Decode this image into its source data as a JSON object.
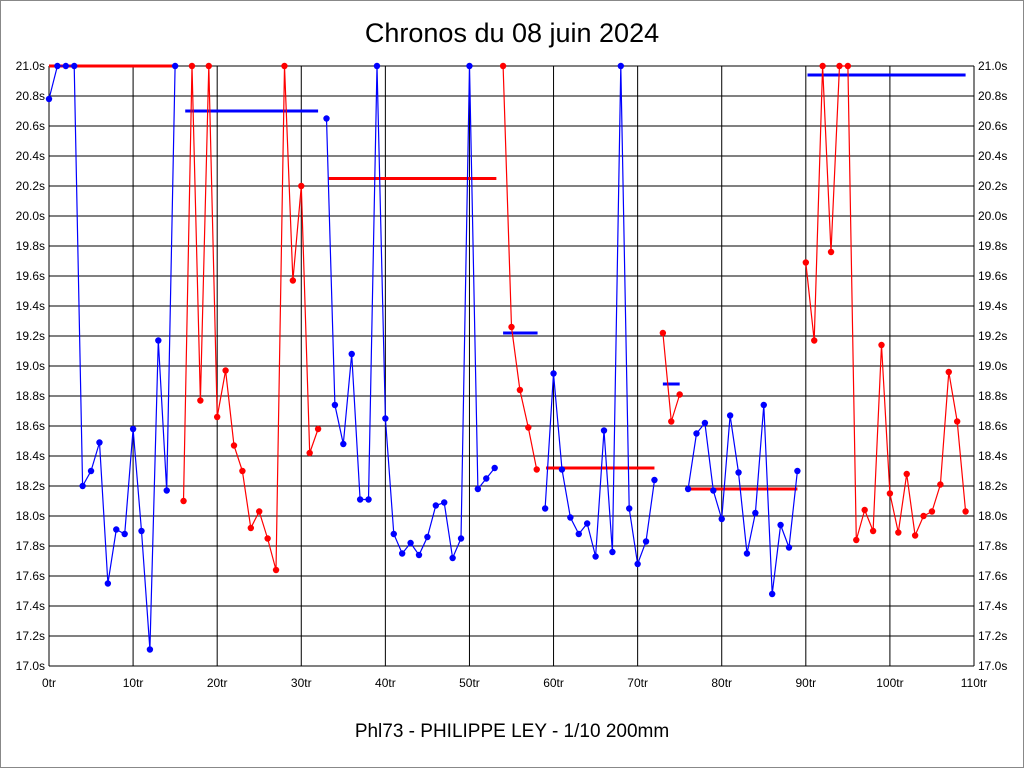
{
  "chart_data": {
    "type": "line",
    "title": "Chronos du 08 juin 2024",
    "subtitle": "Phl73 - PHILIPPE LEY - 1/10 200mm",
    "xlabel": "",
    "ylabel": "",
    "xlim": [
      0,
      110
    ],
    "ylim": [
      17.0,
      21.0
    ],
    "grid": true,
    "x_ticks": [
      "0tr",
      "10tr",
      "20tr",
      "30tr",
      "40tr",
      "50tr",
      "60tr",
      "70tr",
      "80tr",
      "90tr",
      "100tr",
      "110tr"
    ],
    "y_ticks": [
      "21.0s",
      "20.8s",
      "20.6s",
      "20.4s",
      "20.2s",
      "20.0s",
      "19.8s",
      "19.6s",
      "19.4s",
      "19.2s",
      "19.0s",
      "18.8s",
      "18.6s",
      "18.4s",
      "18.2s",
      "18.0s",
      "17.8s",
      "17.6s",
      "17.4s",
      "17.2s",
      "17.0s"
    ],
    "colors": {
      "blue": "#0000ff",
      "red": "#ff0000"
    },
    "series": [
      {
        "name": "session-1",
        "color": "#0000ff",
        "start_lap": 0,
        "values": [
          20.78,
          21.0,
          21.0,
          21.0,
          18.2,
          18.3,
          18.49,
          17.55,
          17.91,
          17.88,
          18.58,
          17.9,
          17.11,
          19.17,
          18.17,
          21.0
        ]
      },
      {
        "name": "session-2",
        "color": "#ff0000",
        "start_lap": 16,
        "values": [
          18.1,
          21.0,
          18.77,
          21.0,
          18.66,
          18.97,
          18.47,
          18.3,
          17.92,
          18.03,
          17.85,
          17.64,
          21.0,
          19.57,
          20.2,
          18.42,
          18.58
        ]
      },
      {
        "name": "session-3",
        "color": "#0000ff",
        "start_lap": 33,
        "values": [
          20.65,
          18.74,
          18.48,
          19.08,
          18.11,
          18.11,
          21.0,
          18.65,
          17.88,
          17.75,
          17.82,
          17.74,
          17.86,
          18.07,
          18.09,
          17.72,
          17.85,
          21.0,
          18.18,
          18.25,
          18.32
        ]
      },
      {
        "name": "session-4",
        "color": "#ff0000",
        "start_lap": 54,
        "values": [
          21.0,
          19.26,
          18.84,
          18.59,
          18.31
        ]
      },
      {
        "name": "session-5",
        "color": "#0000ff",
        "start_lap": 59,
        "values": [
          18.05,
          18.95,
          18.31,
          17.99,
          17.88,
          17.95,
          17.73,
          18.57,
          17.76,
          21.0,
          18.05,
          17.68,
          17.83,
          18.24
        ]
      },
      {
        "name": "session-6",
        "color": "#ff0000",
        "start_lap": 73,
        "values": [
          19.22,
          18.63,
          18.81
        ]
      },
      {
        "name": "session-7",
        "color": "#0000ff",
        "start_lap": 76,
        "values": [
          18.18,
          18.55,
          18.62,
          18.17,
          17.98,
          18.67,
          18.29,
          17.75,
          18.02,
          18.74,
          17.48,
          17.94,
          17.79,
          18.3
        ]
      },
      {
        "name": "session-8",
        "color": "#ff0000",
        "start_lap": 90,
        "values": [
          19.69,
          19.17,
          21.0,
          19.76,
          21.0,
          21.0,
          17.84,
          18.04,
          17.9,
          19.14,
          18.15,
          17.89,
          18.28,
          17.87,
          18.0,
          18.03,
          18.21,
          18.96,
          18.63,
          18.03
        ]
      }
    ],
    "averages": [
      {
        "color": "#ff0000",
        "from_lap": 0,
        "to_lap": 15,
        "value": 21.0
      },
      {
        "color": "#0000ff",
        "from_lap": 16.2,
        "to_lap": 32,
        "value": 20.7
      },
      {
        "color": "#ff0000",
        "from_lap": 33.2,
        "to_lap": 53.2,
        "value": 20.25
      },
      {
        "color": "#0000ff",
        "from_lap": 54,
        "to_lap": 58.1,
        "value": 19.22
      },
      {
        "color": "#ff0000",
        "from_lap": 59.1,
        "to_lap": 72,
        "value": 18.32
      },
      {
        "color": "#0000ff",
        "from_lap": 73,
        "to_lap": 75,
        "value": 18.88
      },
      {
        "color": "#ff0000",
        "from_lap": 76,
        "to_lap": 89,
        "value": 18.18
      },
      {
        "color": "#0000ff",
        "from_lap": 90.2,
        "to_lap": 109,
        "value": 20.94
      }
    ]
  }
}
